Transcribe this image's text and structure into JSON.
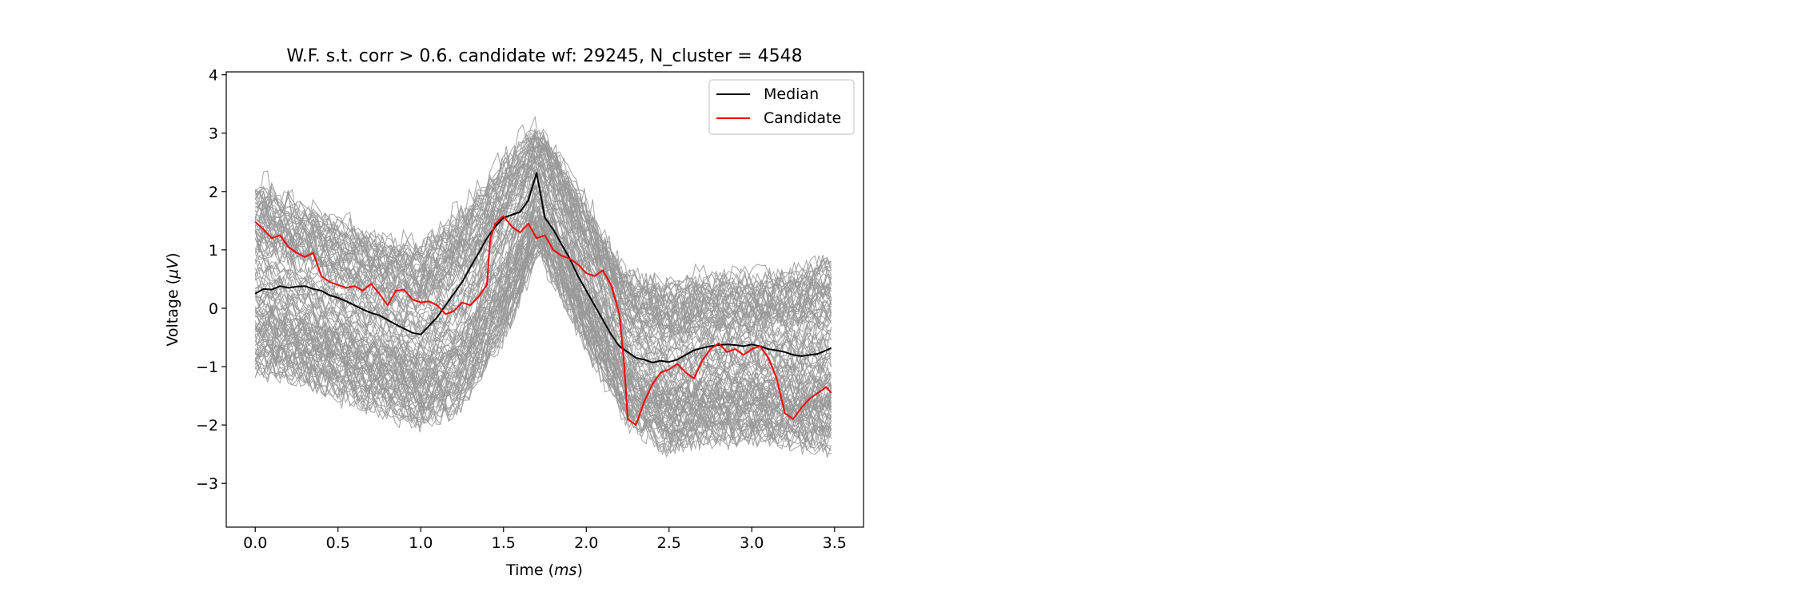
{
  "chart_data": {
    "type": "line",
    "title": "W.F. s.t. corr > 0.6. candidate wf: 29245, N_cluster = 4548",
    "xlabel_main": "Time (",
    "xlabel_unit": "ms",
    "xlabel_end": ")",
    "ylabel_main": "Voltage (",
    "ylabel_unit": "μV",
    "ylabel_end": ")",
    "xlim": [
      -0.175,
      3.675
    ],
    "ylim": [
      -3.75,
      4.05
    ],
    "x_ticks": [
      0.0,
      0.5,
      1.0,
      1.5,
      2.0,
      2.5,
      3.0,
      3.5
    ],
    "x_tick_labels": [
      "0.0",
      "0.5",
      "1.0",
      "1.5",
      "2.0",
      "2.5",
      "3.0",
      "3.5"
    ],
    "y_ticks": [
      -3,
      -2,
      -1,
      0,
      1,
      2,
      3,
      4
    ],
    "y_tick_labels": [
      "−3",
      "−2",
      "−1",
      "0",
      "1",
      "2",
      "3",
      "4"
    ],
    "legend_position": "top-right",
    "grid": false,
    "colors": {
      "cluster": "#999999",
      "median": "#000000",
      "candidate": "#ff0000"
    },
    "cluster_band": {
      "x": [
        0.0,
        0.25,
        0.5,
        0.75,
        1.0,
        1.25,
        1.5,
        1.6,
        1.7,
        1.8,
        2.0,
        2.25,
        2.5,
        2.75,
        3.0,
        3.25,
        3.48
      ],
      "upper": [
        2.5,
        2.1,
        1.8,
        1.5,
        1.4,
        2.0,
        2.8,
        3.1,
        3.3,
        3.0,
        2.0,
        0.8,
        0.7,
        0.8,
        0.8,
        0.9,
        1.2
      ],
      "lower": [
        -1.4,
        -1.5,
        -1.8,
        -2.0,
        -2.3,
        -2.0,
        -0.8,
        -0.1,
        0.8,
        0.3,
        -0.9,
        -2.2,
        -2.7,
        -2.5,
        -2.5,
        -2.6,
        -2.7
      ]
    },
    "series": [
      {
        "name": "Median",
        "x": [
          0.0,
          0.05,
          0.1,
          0.15,
          0.2,
          0.25,
          0.3,
          0.35,
          0.4,
          0.45,
          0.5,
          0.55,
          0.6,
          0.65,
          0.7,
          0.75,
          0.8,
          0.85,
          0.9,
          0.95,
          1.0,
          1.05,
          1.1,
          1.15,
          1.2,
          1.25,
          1.3,
          1.35,
          1.4,
          1.45,
          1.5,
          1.55,
          1.6,
          1.65,
          1.7,
          1.75,
          1.8,
          1.85,
          1.9,
          1.95,
          2.0,
          2.05,
          2.1,
          2.15,
          2.2,
          2.25,
          2.3,
          2.35,
          2.4,
          2.45,
          2.5,
          2.55,
          2.6,
          2.65,
          2.7,
          2.75,
          2.8,
          2.85,
          2.9,
          2.95,
          3.0,
          3.05,
          3.1,
          3.15,
          3.2,
          3.25,
          3.3,
          3.35,
          3.4,
          3.45,
          3.48
        ],
        "y": [
          0.25,
          0.33,
          0.32,
          0.38,
          0.35,
          0.37,
          0.38,
          0.33,
          0.3,
          0.22,
          0.18,
          0.12,
          0.05,
          -0.02,
          -0.08,
          -0.12,
          -0.2,
          -0.28,
          -0.35,
          -0.42,
          -0.45,
          -0.3,
          -0.15,
          0.05,
          0.25,
          0.45,
          0.7,
          0.95,
          1.2,
          1.4,
          1.55,
          1.6,
          1.65,
          1.85,
          2.32,
          1.55,
          1.35,
          1.1,
          0.85,
          0.55,
          0.3,
          0.05,
          -0.2,
          -0.45,
          -0.65,
          -0.75,
          -0.85,
          -0.88,
          -0.93,
          -0.9,
          -0.92,
          -0.88,
          -0.8,
          -0.72,
          -0.68,
          -0.65,
          -0.63,
          -0.62,
          -0.63,
          -0.65,
          -0.62,
          -0.65,
          -0.7,
          -0.72,
          -0.75,
          -0.8,
          -0.82,
          -0.8,
          -0.78,
          -0.72,
          -0.68
        ]
      },
      {
        "name": "Candidate",
        "x": [
          0.0,
          0.05,
          0.1,
          0.15,
          0.2,
          0.25,
          0.3,
          0.35,
          0.4,
          0.45,
          0.5,
          0.55,
          0.6,
          0.65,
          0.7,
          0.75,
          0.8,
          0.85,
          0.9,
          0.95,
          1.0,
          1.05,
          1.1,
          1.15,
          1.2,
          1.25,
          1.3,
          1.35,
          1.4,
          1.42,
          1.45,
          1.5,
          1.55,
          1.6,
          1.65,
          1.7,
          1.75,
          1.8,
          1.85,
          1.9,
          1.95,
          2.0,
          2.05,
          2.1,
          2.15,
          2.2,
          2.23,
          2.25,
          2.3,
          2.35,
          2.4,
          2.45,
          2.5,
          2.55,
          2.6,
          2.65,
          2.7,
          2.75,
          2.8,
          2.85,
          2.9,
          2.95,
          3.0,
          3.05,
          3.1,
          3.15,
          3.2,
          3.25,
          3.3,
          3.35,
          3.4,
          3.45,
          3.48
        ],
        "y": [
          1.48,
          1.35,
          1.2,
          1.25,
          1.05,
          0.95,
          0.88,
          0.95,
          0.55,
          0.45,
          0.4,
          0.35,
          0.38,
          0.3,
          0.42,
          0.25,
          0.05,
          0.3,
          0.32,
          0.15,
          0.1,
          0.12,
          0.05,
          -0.1,
          -0.05,
          0.1,
          0.05,
          0.2,
          0.4,
          1.2,
          1.45,
          1.58,
          1.4,
          1.3,
          1.45,
          1.2,
          1.25,
          1.0,
          0.9,
          0.85,
          0.75,
          0.6,
          0.55,
          0.65,
          0.4,
          -0.1,
          -1.0,
          -1.9,
          -2.0,
          -1.6,
          -1.3,
          -1.1,
          -1.05,
          -0.95,
          -1.1,
          -1.2,
          -0.9,
          -0.7,
          -0.6,
          -0.75,
          -0.7,
          -0.8,
          -0.7,
          -0.65,
          -0.85,
          -1.2,
          -1.8,
          -1.9,
          -1.7,
          -1.55,
          -1.45,
          -1.35,
          -1.45
        ]
      }
    ]
  }
}
